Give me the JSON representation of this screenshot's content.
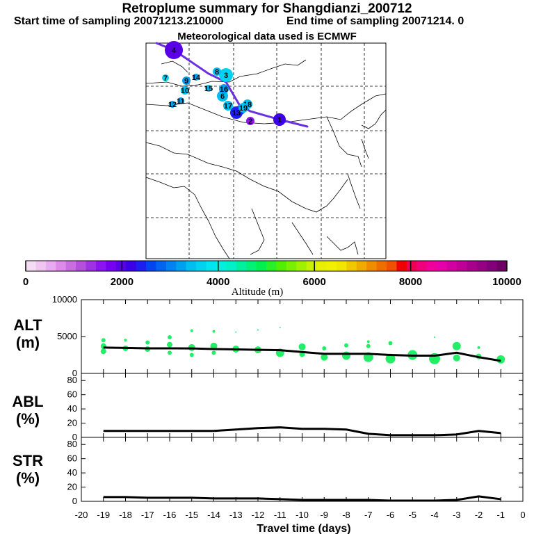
{
  "header": {
    "title": "Retroplume summary for Shangdianzi_200712",
    "start_label": "Start time of sampling 20071213.210000",
    "end_label": "End time of sampling 20071214.     0",
    "met_label": "Meteorological data used is ECMWF"
  },
  "colorbar": {
    "title": "Altitude (m)",
    "ticks": [
      "0",
      "2000",
      "4000",
      "6000",
      "8000",
      "10000"
    ],
    "colors": [
      "#f5dcf5",
      "#f0c6f0",
      "#e8aaf0",
      "#dc8ce8",
      "#c86ee0",
      "#b450dc",
      "#a032e6",
      "#8c14f0",
      "#7800f0",
      "#5a00e6",
      "#3c00e6",
      "#1e1ef0",
      "#0046f0",
      "#0064f0",
      "#0082f0",
      "#00a0f0",
      "#00bef0",
      "#00d2f0",
      "#00e6f0",
      "#00f0dc",
      "#00f0c8",
      "#00f0a0",
      "#00f078",
      "#00f050",
      "#28f028",
      "#50f000",
      "#78f000",
      "#a0f000",
      "#c8f000",
      "#e6f000",
      "#f0f000",
      "#f0e600",
      "#f0c800",
      "#f0aa00",
      "#f08c00",
      "#f06e00",
      "#f05000",
      "#f00000",
      "#f00050",
      "#f0007a",
      "#f0009a",
      "#e600aa",
      "#d200a0",
      "#be0096",
      "#a8008c",
      "#960082",
      "#820078",
      "#6e0064"
    ]
  },
  "map": {
    "points": [
      {
        "label": "1",
        "alt": 2100
      },
      {
        "label": "2",
        "alt": 1500
      },
      {
        "label": "3",
        "alt": 3600
      },
      {
        "label": "4",
        "alt": 1900
      },
      {
        "label": "5",
        "alt": 2800
      },
      {
        "label": "6",
        "alt": 3400
      },
      {
        "label": "7",
        "alt": 3700
      },
      {
        "label": "8",
        "alt": 3500
      },
      {
        "label": "9",
        "alt": 3300
      },
      {
        "label": "10",
        "alt": 3400
      },
      {
        "label": "11",
        "alt": 3300
      },
      {
        "label": "12",
        "alt": 3200
      },
      {
        "label": "13",
        "alt": 2300
      },
      {
        "label": "14",
        "alt": 3300
      },
      {
        "label": "15",
        "alt": 3500
      },
      {
        "label": "16",
        "alt": 3300
      },
      {
        "label": "17",
        "alt": 3400
      },
      {
        "label": "18",
        "alt": 3500
      },
      {
        "label": "19",
        "alt": 3400
      }
    ]
  },
  "chart_data": [
    {
      "type": "line",
      "title": "ALT (m)",
      "xlabel": "Travel time (days)",
      "ylabel": "ALT (m)",
      "ylim": [
        0,
        10000
      ],
      "yticks": [
        "0",
        "5000",
        "10000"
      ],
      "x": [
        -19,
        -18,
        -17,
        -16,
        -15,
        -14,
        -13,
        -12,
        -11,
        -10,
        -9,
        -8,
        -7,
        -6,
        -5,
        -4,
        -3,
        -2,
        -1
      ],
      "values": [
        3500,
        3450,
        3400,
        3400,
        3380,
        3300,
        3250,
        3200,
        3150,
        2900,
        2650,
        2650,
        2650,
        2500,
        2400,
        2400,
        2800,
        2200,
        1700
      ],
      "dots": [
        {
          "x": -19,
          "y": 4500
        },
        {
          "x": -19,
          "y": 3700
        },
        {
          "x": -19,
          "y": 3000
        },
        {
          "x": -18,
          "y": 4500
        },
        {
          "x": -18,
          "y": 3400
        },
        {
          "x": -17,
          "y": 4200
        },
        {
          "x": -17,
          "y": 3300
        },
        {
          "x": -16,
          "y": 4900
        },
        {
          "x": -16,
          "y": 3900
        },
        {
          "x": -16,
          "y": 2800
        },
        {
          "x": -15,
          "y": 5800
        },
        {
          "x": -15,
          "y": 3500
        },
        {
          "x": -15,
          "y": 2500
        },
        {
          "x": -14,
          "y": 5700
        },
        {
          "x": -14,
          "y": 3700
        },
        {
          "x": -14,
          "y": 2800
        },
        {
          "x": -13,
          "y": 5600
        },
        {
          "x": -13,
          "y": 3300
        },
        {
          "x": -12,
          "y": 5900
        },
        {
          "x": -12,
          "y": 3200
        },
        {
          "x": -11,
          "y": 6200
        },
        {
          "x": -11,
          "y": 2800
        },
        {
          "x": -10,
          "y": 3600
        },
        {
          "x": -10,
          "y": 2600
        },
        {
          "x": -9,
          "y": 3400
        },
        {
          "x": -9,
          "y": 2200
        },
        {
          "x": -8,
          "y": 3800
        },
        {
          "x": -8,
          "y": 2400
        },
        {
          "x": -7,
          "y": 4300
        },
        {
          "x": -7,
          "y": 3700
        },
        {
          "x": -7,
          "y": 2200
        },
        {
          "x": -6,
          "y": 4100
        },
        {
          "x": -6,
          "y": 2000
        },
        {
          "x": -5,
          "y": 2500
        },
        {
          "x": -4,
          "y": 4900
        },
        {
          "x": -4,
          "y": 2000
        },
        {
          "x": -3,
          "y": 3700
        },
        {
          "x": -3,
          "y": 2100
        },
        {
          "x": -2,
          "y": 3500
        },
        {
          "x": -2,
          "y": 2300
        },
        {
          "x": -1,
          "y": 1900
        }
      ]
    },
    {
      "type": "line",
      "title": "ABL (%)",
      "xlabel": "Travel time (days)",
      "ylabel": "ABL (%)",
      "ylim": [
        0,
        90
      ],
      "yticks": [
        "0",
        "20",
        "40",
        "60",
        "80"
      ],
      "x": [
        -19,
        -18,
        -17,
        -16,
        -15,
        -14,
        -13,
        -12,
        -11,
        -10,
        -9,
        -8,
        -7,
        -6,
        -5,
        -4,
        -3,
        -2,
        -1
      ],
      "values": [
        9,
        9,
        9,
        9,
        9,
        9,
        11,
        13,
        14,
        12,
        12,
        11,
        5,
        3,
        3,
        3,
        4,
        9,
        6
      ]
    },
    {
      "type": "line",
      "title": "STR (%)",
      "xlabel": "Travel time (days)",
      "ylabel": "STR (%)",
      "ylim": [
        0,
        90
      ],
      "yticks": [
        "0",
        "20",
        "40",
        "60",
        "80"
      ],
      "x": [
        -19,
        -18,
        -17,
        -16,
        -15,
        -14,
        -13,
        -12,
        -11,
        -10,
        -9,
        -8,
        -7,
        -6,
        -5,
        -4,
        -3,
        -2,
        -1
      ],
      "values": [
        6,
        6,
        5,
        5,
        5,
        4,
        4,
        4,
        3,
        2,
        2,
        2,
        2,
        1,
        1,
        1,
        2,
        7,
        3
      ]
    }
  ],
  "axes": {
    "xticks": [
      "-20",
      "-19",
      "-18",
      "-17",
      "-16",
      "-15",
      "-14",
      "-13",
      "-12",
      "-11",
      "-10",
      "-9",
      "-8",
      "-7",
      "-6",
      "-5",
      "-4",
      "-3",
      "-2",
      "-1",
      "0"
    ],
    "xlabel": "Travel time (days)",
    "panels": [
      {
        "label_line1": "ALT",
        "label_line2": "(m)"
      },
      {
        "label_line1": "ABL",
        "label_line2": "(%)"
      },
      {
        "label_line1": "STR",
        "label_line2": "(%)"
      }
    ]
  }
}
